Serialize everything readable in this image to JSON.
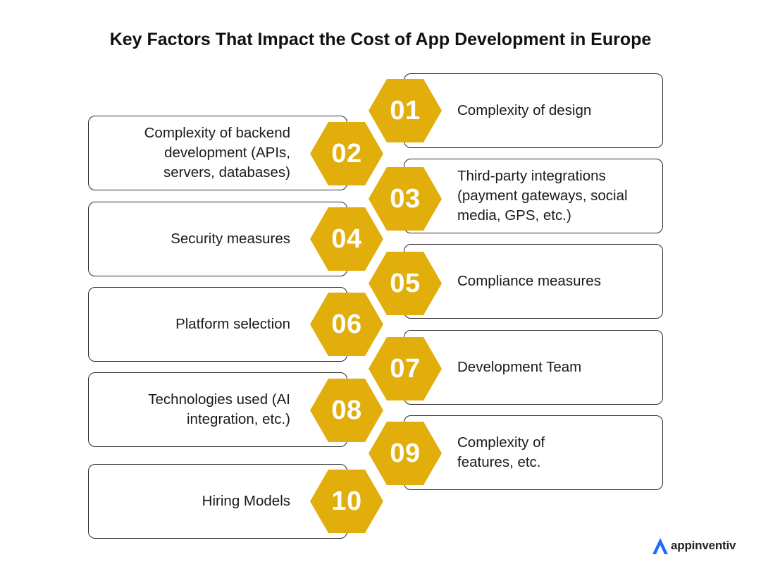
{
  "title": "Key Factors That Impact the Cost of App Development in Europe",
  "colors": {
    "hexagon_fill": "#E2AE0C",
    "hexagon_text": "#FFFFFF",
    "card_border": "#2A2A2A",
    "logo_accent": "#1E6BFF"
  },
  "factors": [
    {
      "number": "01",
      "label": "Complexity of design",
      "side": "right"
    },
    {
      "number": "02",
      "label": "Complexity of backend\ndevelopment (APIs,\nservers, databases)",
      "side": "left"
    },
    {
      "number": "03",
      "label": "Third-party integrations\n(payment gateways, social\nmedia, GPS, etc.)",
      "side": "right"
    },
    {
      "number": "04",
      "label": "Security measures",
      "side": "left"
    },
    {
      "number": "05",
      "label": "Compliance measures",
      "side": "right"
    },
    {
      "number": "06",
      "label": "Platform selection",
      "side": "left"
    },
    {
      "number": "07",
      "label": "Development Team",
      "side": "right"
    },
    {
      "number": "08",
      "label": "Technologies used (AI\nintegration, etc.)",
      "side": "left"
    },
    {
      "number": "09",
      "label": "Complexity of\nfeatures, etc.",
      "side": "right"
    },
    {
      "number": "10",
      "label": "Hiring Models",
      "side": "left"
    }
  ],
  "brand": {
    "name": "appinventiv",
    "icon": "appinventiv-logo-icon"
  }
}
